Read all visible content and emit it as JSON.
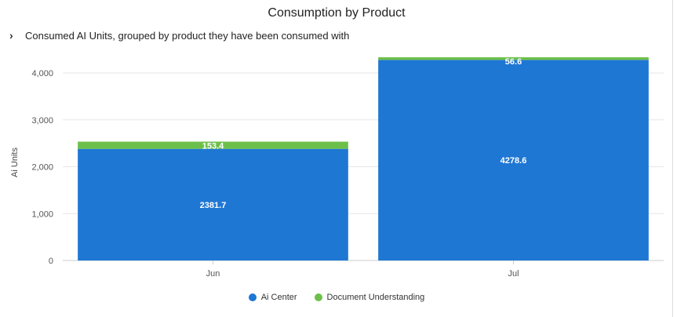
{
  "header": {
    "title": "Consumption by Product",
    "subtitle": "Consumed AI Units, grouped by product they have been consumed with",
    "expand_icon": "chevron-right-icon"
  },
  "legend": {
    "items": [
      {
        "label": "Ai Center",
        "color": "#1f77d4"
      },
      {
        "label": "Document Understanding",
        "color": "#6cc04a"
      }
    ]
  },
  "chart_data": {
    "type": "bar",
    "stacked": true,
    "title": "Consumption by Product",
    "subtitle": "Consumed AI Units, grouped by product they have been consumed with",
    "xlabel": "",
    "ylabel": "Ai Units",
    "categories": [
      "Jun",
      "Jul"
    ],
    "series": [
      {
        "name": "Ai Center",
        "color": "#1f77d4",
        "values": [
          2381.7,
          4278.6
        ],
        "labels": [
          "2381.7",
          "4278.6"
        ]
      },
      {
        "name": "Document Understanding",
        "color": "#6cc04a",
        "values": [
          153.4,
          56.6
        ],
        "labels": [
          "153.4",
          "56.6"
        ]
      }
    ],
    "ylim": [
      0,
      4000
    ],
    "yticks": [
      0,
      1000,
      2000,
      3000,
      4000
    ],
    "ytick_labels": [
      "0",
      "1,000",
      "2,000",
      "3,000",
      "4,000"
    ],
    "grid": true,
    "legend_position": "bottom"
  }
}
